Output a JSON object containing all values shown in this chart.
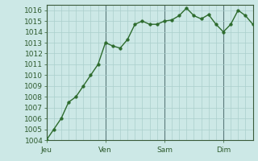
{
  "background_color": "#cce8e6",
  "plot_bg_color": "#cce8e6",
  "line_color": "#2d6b2d",
  "marker_color": "#2d6b2d",
  "grid_color": "#aacfcc",
  "axis_color": "#3a5a3a",
  "tick_label_color": "#2d5a2d",
  "day_line_color": "#5a7a7a",
  "ylim": [
    1004,
    1016.5
  ],
  "yticks": [
    1004,
    1005,
    1006,
    1007,
    1008,
    1009,
    1010,
    1011,
    1012,
    1013,
    1014,
    1015,
    1016
  ],
  "day_labels": [
    "Jeu",
    "Ven",
    "Sam",
    "Dim"
  ],
  "day_positions": [
    0,
    8,
    16,
    24
  ],
  "xlim": [
    0,
    28
  ],
  "x_values": [
    0,
    1,
    2,
    3,
    4,
    5,
    6,
    7,
    8,
    9,
    10,
    11,
    12,
    13,
    14,
    15,
    16,
    17,
    18,
    19,
    20,
    21,
    22,
    23,
    24,
    25,
    26,
    27,
    28
  ],
  "y_values": [
    1004.0,
    1005.0,
    1006.0,
    1007.5,
    1008.0,
    1009.0,
    1010.0,
    1011.0,
    1013.0,
    1012.7,
    1012.5,
    1013.3,
    1014.7,
    1015.0,
    1014.7,
    1014.7,
    1015.0,
    1015.1,
    1015.5,
    1016.2,
    1015.5,
    1015.2,
    1015.6,
    1014.7,
    1014.0,
    1014.7,
    1016.0,
    1015.5,
    1014.7
  ],
  "fontsize": 6.5,
  "linewidth": 1.0,
  "markersize": 2.5
}
